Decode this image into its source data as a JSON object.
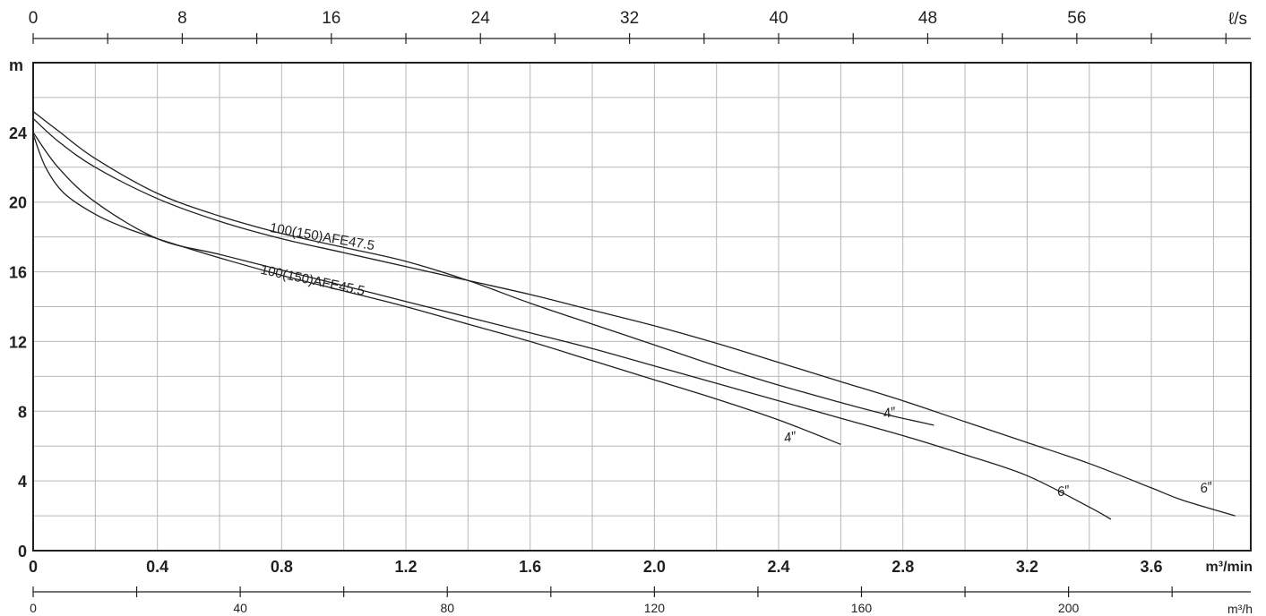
{
  "chart_data": {
    "type": "line",
    "title": "",
    "ylabel": "m",
    "xlabel": "m³/min",
    "top_axis_label": "ℓ/s",
    "bottom_axis_label": "m³/h",
    "xlim": [
      0,
      3.92
    ],
    "ylim": [
      0,
      28
    ],
    "grid": true,
    "x_ticks": [
      "0",
      "0.4",
      "0.8",
      "1.2",
      "1.6",
      "2.0",
      "2.4",
      "2.8",
      "3.2",
      "3.6"
    ],
    "y_ticks": [
      "0",
      "4",
      "8",
      "12",
      "16",
      "20",
      "24"
    ],
    "top_ticks": [
      "0",
      "8",
      "16",
      "24",
      "32",
      "40",
      "48",
      "56"
    ],
    "bottom_ticks": [
      "0",
      "40",
      "80",
      "120",
      "160",
      "200"
    ],
    "series": [
      {
        "name": "",
        "points": [
          [
            0,
            25.2
          ],
          [
            0.08,
            24.1
          ],
          [
            0.2,
            22.5
          ],
          [
            0.4,
            20.5
          ],
          [
            0.6,
            19.2
          ],
          [
            0.8,
            18.2
          ],
          [
            1.0,
            17.4
          ],
          [
            1.2,
            16.6
          ],
          [
            1.4,
            15.5
          ],
          [
            1.6,
            14.2
          ],
          [
            1.8,
            13.0
          ],
          [
            2.0,
            11.8
          ],
          [
            2.2,
            10.6
          ],
          [
            2.4,
            9.5
          ],
          [
            2.6,
            8.5
          ],
          [
            2.75,
            7.8
          ],
          [
            2.9,
            7.2
          ]
        ]
      },
      {
        "name": "",
        "points": [
          [
            0,
            24.8
          ],
          [
            0.08,
            23.5
          ],
          [
            0.2,
            22.0
          ],
          [
            0.4,
            20.2
          ],
          [
            0.6,
            18.9
          ],
          [
            0.8,
            17.9
          ],
          [
            1.0,
            17.1
          ],
          [
            1.2,
            16.3
          ],
          [
            1.4,
            15.5
          ],
          [
            1.6,
            14.7
          ],
          [
            1.8,
            13.8
          ],
          [
            2.0,
            12.9
          ],
          [
            2.2,
            11.9
          ],
          [
            2.4,
            10.8
          ],
          [
            2.6,
            9.7
          ],
          [
            2.8,
            8.6
          ],
          [
            3.0,
            7.4
          ],
          [
            3.2,
            6.2
          ],
          [
            3.4,
            5.0
          ],
          [
            3.6,
            3.6
          ],
          [
            3.7,
            2.9
          ],
          [
            3.87,
            2.0
          ]
        ]
      },
      {
        "name": "",
        "points": [
          [
            0,
            23.9
          ],
          [
            0.04,
            22.0
          ],
          [
            0.1,
            20.5
          ],
          [
            0.2,
            19.3
          ],
          [
            0.3,
            18.5
          ],
          [
            0.4,
            17.9
          ],
          [
            0.6,
            16.8
          ],
          [
            0.8,
            15.8
          ],
          [
            1.0,
            14.9
          ],
          [
            1.2,
            14.0
          ],
          [
            1.4,
            13.0
          ],
          [
            1.6,
            12.0
          ],
          [
            1.8,
            10.9
          ],
          [
            2.0,
            9.8
          ],
          [
            2.2,
            8.7
          ],
          [
            2.4,
            7.5
          ],
          [
            2.6,
            6.1
          ]
        ]
      },
      {
        "name": "",
        "points": [
          [
            0,
            24.0
          ],
          [
            0.08,
            22.0
          ],
          [
            0.2,
            20.0
          ],
          [
            0.4,
            17.9
          ],
          [
            0.6,
            17.0
          ],
          [
            0.8,
            16.1
          ],
          [
            1.0,
            15.2
          ],
          [
            1.2,
            14.3
          ],
          [
            1.4,
            13.4
          ],
          [
            1.6,
            12.5
          ],
          [
            1.8,
            11.6
          ],
          [
            2.0,
            10.6
          ],
          [
            2.2,
            9.6
          ],
          [
            2.4,
            8.6
          ],
          [
            2.6,
            7.6
          ],
          [
            2.8,
            6.6
          ],
          [
            3.0,
            5.5
          ],
          [
            3.2,
            4.3
          ],
          [
            3.4,
            2.5
          ],
          [
            3.47,
            1.8
          ]
        ]
      }
    ],
    "curve_labels": [
      {
        "text": "100(150)AFE47.5",
        "x": 0.76,
        "y": 18.3,
        "angle": 10
      },
      {
        "text": "100(150)AFE45.5",
        "x": 0.73,
        "y": 15.9,
        "angle": 12
      },
      {
        "text": "4″",
        "x": 2.74,
        "y": 7.6,
        "angle": -12
      },
      {
        "text": "4″",
        "x": 2.42,
        "y": 6.2,
        "angle": -12
      },
      {
        "text": "6″",
        "x": 3.3,
        "y": 3.1,
        "angle": -12
      },
      {
        "text": "6″",
        "x": 3.76,
        "y": 3.3,
        "angle": -12
      }
    ]
  }
}
